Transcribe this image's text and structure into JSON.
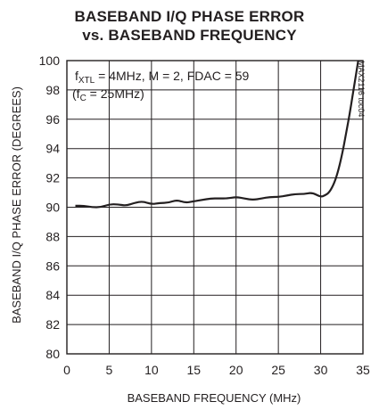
{
  "chart_data": {
    "type": "line",
    "title_line1": "BASEBAND I/Q PHASE ERROR",
    "title_line2": "vs. BASEBAND FREQUENCY",
    "xlabel": "BASEBAND FREQUENCY (MHz)",
    "ylabel": "BASEBAND I/Q PHASE ERROR (DEGREES)",
    "xlim": [
      0,
      35
    ],
    "ylim": [
      80,
      100
    ],
    "x_ticks": [
      0,
      5,
      10,
      15,
      20,
      25,
      30,
      35
    ],
    "y_ticks": [
      80,
      82,
      84,
      86,
      88,
      90,
      92,
      94,
      96,
      98,
      100
    ],
    "grid": true,
    "annotation": {
      "line1_f": "f",
      "line1_sub": "XTL",
      "line1_rest": " = 4MHz, M = 2, FDAC = 59",
      "line2_open": "(f",
      "line2_sub": "C",
      "line2_rest": " = 25MHz)"
    },
    "figure_code": "MAX2116 toc04",
    "series": [
      {
        "x": [
          1,
          2,
          3,
          4,
          5,
          6,
          7,
          8,
          9,
          10,
          11,
          12,
          13,
          14,
          15,
          16,
          17,
          18,
          19,
          20,
          21,
          22,
          23,
          24,
          25,
          26,
          27,
          28,
          29,
          30,
          30.5,
          31,
          31.5,
          32,
          32.5,
          33,
          33.5,
          34,
          34.5,
          35
        ],
        "y": [
          90.1,
          90.1,
          90.0,
          90.0,
          90.2,
          90.2,
          90.1,
          90.3,
          90.4,
          90.2,
          90.3,
          90.3,
          90.5,
          90.3,
          90.4,
          90.5,
          90.6,
          90.6,
          90.6,
          90.7,
          90.6,
          90.5,
          90.6,
          90.7,
          90.7,
          90.8,
          90.9,
          90.9,
          91.0,
          90.7,
          90.8,
          91.0,
          91.5,
          92.3,
          93.5,
          95.0,
          96.6,
          98.4,
          100.2,
          101.5
        ]
      }
    ]
  }
}
